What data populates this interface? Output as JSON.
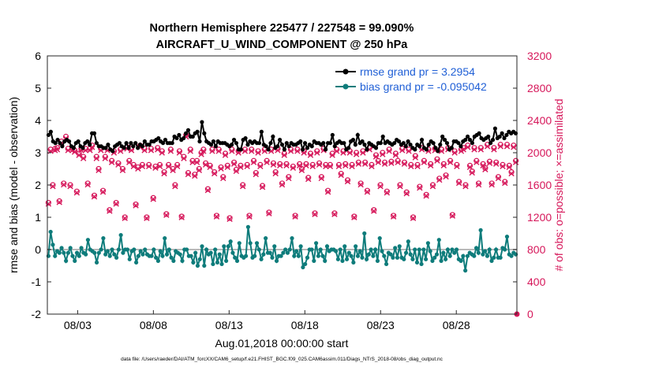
{
  "chart_data": {
    "type": "line",
    "title_line1": "Northern Hemisphere 225477 / 227548 = 99.090%",
    "title_line2": "AIRCRAFT_U_WIND_COMPONENT @ 250 hPa",
    "xlabel": "Aug.01,2018 00:00:00 start",
    "ylabel_left": "rmse and bias (model - observation)",
    "ylabel_right": "# of obs: o=possible; ×=assimilated",
    "footer": "data file: /Users/raeder/DAI/ATM_forcXX/CAM6_setup/f.e21.FHIST_BGC.f09_025.CAM6assim.011/Diags_NTrS_2018-08/obs_diag_output.nc",
    "x_tick_labels": [
      "08/03",
      "08/08",
      "08/13",
      "08/18",
      "08/23",
      "08/28"
    ],
    "x_tick_days": [
      3,
      8,
      13,
      18,
      23,
      28
    ],
    "xlim_days": [
      1,
      32
    ],
    "ylim_left": [
      -2,
      6
    ],
    "yticks_left": [
      "-2",
      "-1",
      "0",
      "1",
      "2",
      "3",
      "4",
      "5",
      "6"
    ],
    "ylim_right": [
      0,
      3200
    ],
    "yticks_right": [
      "0",
      "400",
      "800",
      "1200",
      "1600",
      "2000",
      "2400",
      "2800",
      "3200"
    ],
    "colors": {
      "rmse": "#000000",
      "bias": "#0e7c7b",
      "obs": "#d6175a",
      "zero_line": "#b9b9b9",
      "legend_text": "#1f5fd6"
    },
    "series": [
      {
        "name": "rmse grand pr = 3.2954",
        "values": [
          3.55,
          3.65,
          3.35,
          3.3,
          3.4,
          3.3,
          3.2,
          3.35,
          3.4,
          3.35,
          3.2,
          3.15,
          3.3,
          3.35,
          3.2,
          3.15,
          3.3,
          3.35,
          3.25,
          3.6,
          3.6,
          3.3,
          3.2,
          3.2,
          3.15,
          3.15,
          3.25,
          3.1,
          3.05,
          3.2,
          3.25,
          3.3,
          3.2,
          3.15,
          3.3,
          3.15,
          3.3,
          3.2,
          3.3,
          3.15,
          3.25,
          3.2,
          3.35,
          3.25,
          3.25,
          3.35,
          3.35,
          3.4,
          3.45,
          3.35,
          3.3,
          3.4,
          3.3,
          3.3,
          3.3,
          3.5,
          3.45,
          3.55,
          3.4,
          3.45,
          3.6,
          3.7,
          3.5,
          3.5,
          3.6,
          3.65,
          3.35,
          3.95,
          3.6,
          3.35,
          3.3,
          3.25,
          3.35,
          3.2,
          3.35,
          3.3,
          3.3,
          3.3,
          3.25,
          3.2,
          3.25,
          3.4,
          3.3,
          3.1,
          3.1,
          3.4,
          3.45,
          3.25,
          3.35,
          3.3,
          3.35,
          3.3,
          3.3,
          3.65,
          3.25,
          3.2,
          3.1,
          3.3,
          3.5,
          3.15,
          3.2,
          3.4,
          3.25,
          3.1,
          3.3,
          3.2,
          3.3,
          3.25,
          3.25,
          3.3,
          3.35,
          3.1,
          3.3,
          3.15,
          3.25,
          3.2,
          3.35,
          3.3,
          3.3,
          3.25,
          3.3,
          3.1,
          3.3,
          3.3,
          3.55,
          3.2,
          3.3,
          3.35,
          3.3,
          3.3,
          3.1,
          3.15,
          3.35,
          3.4,
          3.25,
          3.55,
          3.3,
          3.35,
          3.25,
          3.1,
          3.3,
          3.25,
          3.2,
          3.15,
          3.3,
          3.3,
          3.5,
          3.3,
          3.35,
          3.3,
          3.25,
          3.3,
          3.4,
          3.35,
          3.25,
          3.3,
          3.2,
          3.35,
          3.25,
          3.15,
          3.1,
          3.25,
          3.2,
          3.4,
          3.15,
          3.1,
          3.25,
          3.35,
          3.3,
          3.15,
          3.05,
          3.25,
          3.5,
          3.4,
          3.3,
          3.1,
          3.15,
          3.35,
          3.35,
          3.3,
          3.2,
          3.35,
          3.4,
          3.5,
          3.4,
          3.3,
          3.5,
          3.55,
          3.6,
          3.45,
          3.4,
          3.45,
          3.5,
          3.3,
          3.4,
          3.75,
          3.45,
          3.5,
          3.6,
          3.45,
          3.55,
          3.65,
          3.6,
          3.65,
          3.6
        ]
      },
      {
        "name": "bias grand pr = -0.095042",
        "values": [
          -0.2,
          0.55,
          0.15,
          -0.2,
          -0.05,
          -0.1,
          0.05,
          -0.1,
          -0.35,
          -0.1,
          0.05,
          -0.2,
          -0.35,
          -0.1,
          -0.2,
          0.05,
          -0.1,
          -0.15,
          0.3,
          0.0,
          -0.05,
          -0.1,
          -0.4,
          -0.1,
          0.0,
          0.35,
          -0.15,
          -0.05,
          -0.2,
          0.0,
          -0.15,
          -0.25,
          0.0,
          0.45,
          -0.1,
          0.0,
          0.0,
          -0.3,
          -0.05,
          0.0,
          -0.4,
          -0.2,
          -0.05,
          -0.15,
          0.0,
          -0.15,
          -0.2,
          -0.2,
          0.0,
          -0.25,
          -0.35,
          -0.05,
          -0.2,
          0.35,
          -0.15,
          0.0,
          -0.25,
          -0.35,
          -0.05,
          -0.1,
          -0.15,
          -0.35,
          0.0,
          0.0,
          -0.2,
          -0.2,
          -0.4,
          -0.1,
          -0.5,
          -0.3,
          0.1,
          -0.5,
          0.0,
          -0.15,
          -0.1,
          -0.45,
          0.0,
          -0.4,
          -0.15,
          -0.45,
          0.1,
          -0.35,
          0.1,
          0.25,
          -0.1,
          -0.25,
          -0.35,
          0.2,
          -0.2,
          -0.25,
          -0.2,
          0.7,
          0.2,
          -0.25,
          -0.2,
          0.2,
          0.0,
          -0.3,
          -0.15,
          0.35,
          -0.1,
          -0.1,
          -0.25,
          0.1,
          -0.35,
          -0.2,
          -0.2,
          -0.1,
          0.0,
          -0.1,
          0.0,
          0.35,
          -0.2,
          -0.05,
          -0.2,
          0.1,
          -0.55,
          -0.45,
          -0.25,
          0.0,
          0.0,
          -0.35,
          0.2,
          -0.2,
          0.0,
          -0.2,
          -0.35,
          0.1,
          -0.05,
          0.0,
          0.0,
          -0.05,
          -0.3,
          0.0,
          -0.35,
          0.1,
          -0.3,
          -0.1,
          -0.2,
          -0.4,
          0.1,
          -0.2,
          -0.05,
          -0.25,
          0.5,
          -0.3,
          -0.15,
          0.0,
          -0.2,
          0.0,
          -0.35,
          0.35,
          -0.05,
          -0.2,
          -0.45,
          -0.1,
          -0.15,
          -0.25,
          0.05,
          -0.25,
          0.1,
          -0.25,
          -0.3,
          -0.1,
          0.25,
          -0.15,
          -0.3,
          0.0,
          -0.4,
          0.0,
          -0.45,
          0.0,
          -0.3,
          0.2,
          -0.05,
          -0.35,
          -0.25,
          -0.15,
          0.3,
          -0.35,
          -0.1,
          -0.3,
          0.0,
          -0.2,
          0.0,
          -0.1,
          0.0,
          -0.3,
          -0.35,
          -0.2,
          -0.65,
          -0.2,
          -0.1,
          -0.15,
          -0.2,
          0.05,
          -0.1,
          0.6,
          -0.15,
          -0.05,
          -0.2,
          0.0,
          -0.35,
          -0.25,
          0.0,
          -0.25,
          -0.25,
          0.05,
          0.0,
          0.4,
          -0.15,
          -0.2,
          -0.1,
          -0.15
        ]
      }
    ],
    "obs_counts_possible": [
      1380,
      2040,
      1600,
      2050,
      2060,
      1400,
      2140,
      1620,
      2200,
      2050,
      1600,
      2050,
      2030,
      1520,
      1990,
      2050,
      1950,
      2050,
      1620,
      2050,
      2090,
      1470,
      1950,
      1800,
      2050,
      1530,
      1950,
      2050,
      1290,
      1900,
      2020,
      1380,
      1870,
      2040,
      1800,
      1200,
      2070,
      1900,
      2050,
      1850,
      1360,
      1820,
      2090,
      1850,
      2050,
      1200,
      1850,
      2050,
      1440,
      1830,
      2060,
      1850,
      2020,
      1760,
      1240,
      1850,
      2040,
      1800,
      1600,
      1850,
      2020,
      1210,
      1950,
      2220,
      1750,
      2040,
      1900,
      1730,
      1900,
      1800,
      2000,
      2040,
      1870,
      1550,
      1840,
      2040,
      1760,
      1220,
      2040,
      1820,
      1700,
      1990,
      1840,
      1190,
      2040,
      1880,
      1790,
      2020,
      1840,
      1600,
      2040,
      1850,
      1220,
      2040,
      1900,
      1750,
      2020,
      1850,
      1590,
      2040,
      1900,
      1260,
      2040,
      1870,
      1760,
      2050,
      1860,
      1620,
      1990,
      1860,
      1700,
      2040,
      1830,
      1220,
      2040,
      1860,
      1800,
      2020,
      1860,
      1690,
      1990,
      1850,
      1250,
      2020,
      1870,
      1700,
      2050,
      1850,
      1530,
      1850,
      1990,
      1250,
      2040,
      1850,
      1740,
      2020,
      1860,
      1660,
      2020,
      1850,
      1210,
      2000,
      1880,
      1620,
      2020,
      1880,
      1530,
      2060,
      1850,
      1290,
      1970,
      1900,
      1600,
      2000,
      1880,
      1520,
      2040,
      1890,
      1220,
      1990,
      1900,
      1600,
      2050,
      1880,
      1510,
      2040,
      1850,
      1200,
      1960,
      1850,
      1580,
      2060,
      1900,
      1480,
      2040,
      1860,
      1600,
      2050,
      1920,
      1680,
      2040,
      1860,
      1720,
      2060,
      1900,
      1230,
      2020,
      1850,
      1640,
      2040,
      2060,
      1600,
      2090,
      1840,
      1770,
      2060,
      1900,
      1620,
      2060,
      1860,
      1810,
      2100,
      1890,
      1620,
      2060,
      1880,
      1700,
      2100,
      1850,
      1640,
      2100,
      1840,
      1760,
      2090,
      1900
    ]
  }
}
